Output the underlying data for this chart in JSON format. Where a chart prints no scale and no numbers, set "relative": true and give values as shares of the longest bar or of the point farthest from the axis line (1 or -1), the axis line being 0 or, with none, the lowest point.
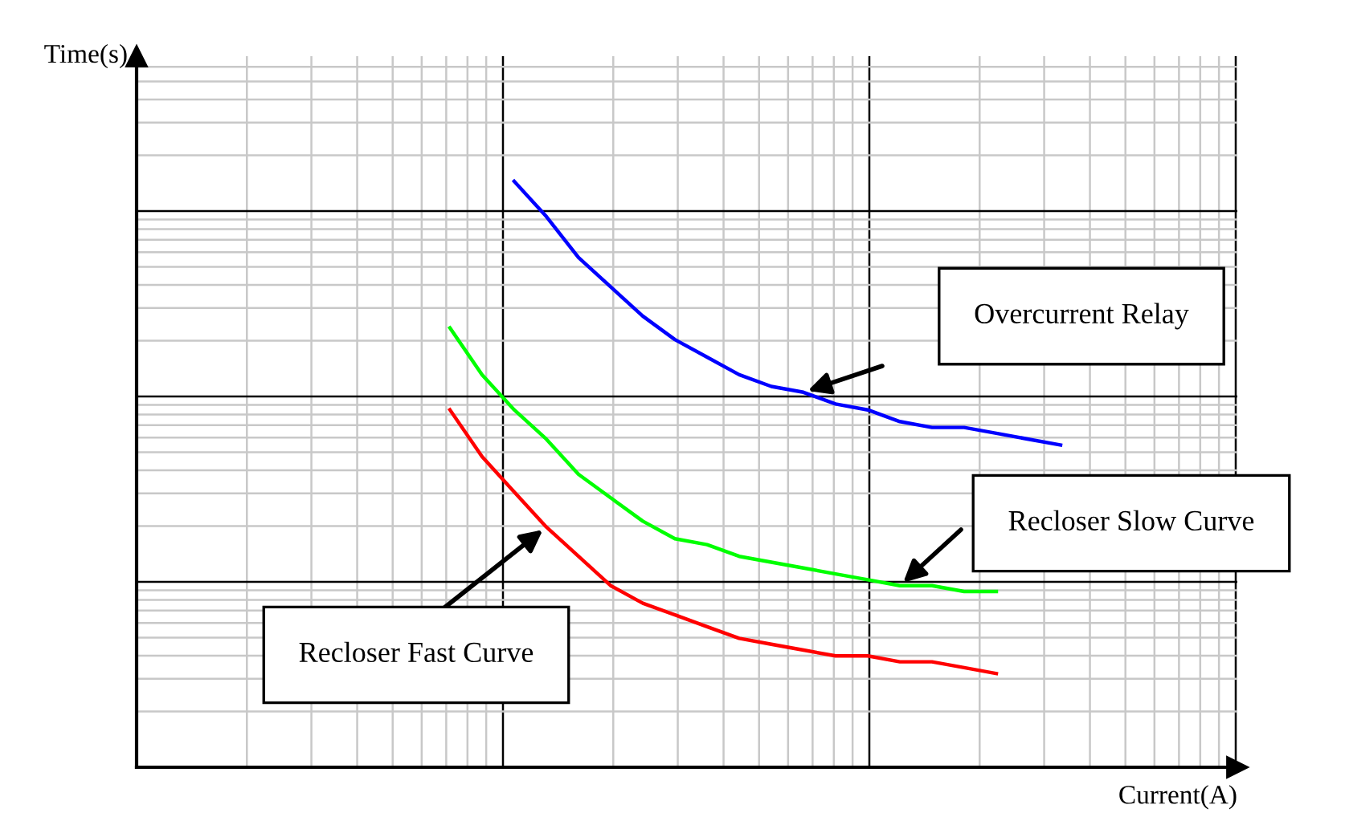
{
  "chart_data": {
    "type": "line",
    "relative": true,
    "grid": true,
    "xlabel": "Current(A)",
    "categories": [
      null,
      null,
      null,
      null,
      null,
      null,
      null,
      null,
      null,
      null,
      null,
      null,
      null,
      null,
      null,
      null,
      null,
      null,
      null,
      null
    ],
    "series": [
      {
        "color": "#0000ff",
        "values": [
          null,
          null,
          1.0,
          0.94,
          0.87,
          0.82,
          0.77,
          0.73,
          0.7,
          0.67,
          0.65,
          0.64,
          0.62,
          0.61,
          0.59,
          0.58,
          0.58,
          0.57,
          0.56,
          0.55
        ]
      },
      {
        "color": "#00ff00",
        "values": [
          0.75,
          0.67,
          0.61,
          0.56,
          0.5,
          0.46,
          0.42,
          0.39,
          0.38,
          0.36,
          0.35,
          0.34,
          0.33,
          0.32,
          0.31,
          0.31,
          0.3,
          0.3,
          null,
          null
        ]
      },
      {
        "color": "#ff0000",
        "values": [
          0.61,
          0.53,
          0.47,
          0.41,
          0.36,
          0.31,
          0.28,
          0.26,
          0.24,
          0.22,
          0.21,
          0.2,
          0.19,
          0.19,
          0.18,
          0.18,
          0.17,
          0.16,
          null,
          null
        ]
      }
    ],
    "annotations": [
      "Overcurrent Relay",
      "Recloser Slow Curve",
      "Recloser Fast Curve",
      "Time(s)"
    ]
  }
}
